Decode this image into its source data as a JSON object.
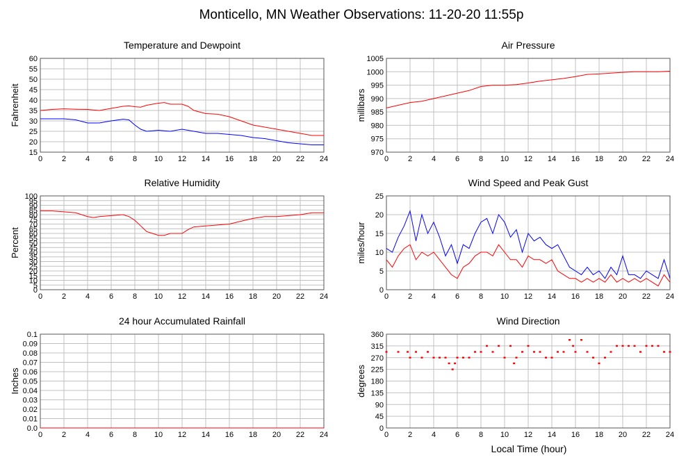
{
  "page": {
    "title": "Monticello, MN Weather Observations: 11-20-20 11:55p",
    "x_axis_label": "Local Time (hour)"
  },
  "colors": {
    "series_red": "#ff0000",
    "series_blue": "#0000ff",
    "grid": "#c0c0c0",
    "frame": "#555555"
  },
  "chart_data": [
    {
      "id": "temp",
      "type": "line",
      "title": "Temperature and Dewpoint",
      "ylabel": "Fahrenheit",
      "xlim": [
        0,
        24
      ],
      "ylim": [
        15,
        60
      ],
      "yticks": [
        15,
        20,
        25,
        30,
        35,
        40,
        45,
        50,
        55,
        60
      ],
      "xticks": [
        0,
        2,
        4,
        6,
        8,
        10,
        12,
        14,
        16,
        18,
        20,
        22,
        24
      ],
      "grid": true,
      "series": [
        {
          "color": "red",
          "x": [
            0,
            1,
            2,
            3,
            4,
            5,
            6,
            7,
            7.5,
            8,
            8.5,
            9,
            10,
            10.5,
            11,
            12,
            12.5,
            13,
            14,
            15,
            16,
            17,
            18,
            19,
            20,
            21,
            22,
            23,
            24
          ],
          "y": [
            35,
            35.5,
            35.8,
            35.6,
            35.5,
            35,
            36,
            37,
            37.2,
            36.8,
            36.6,
            37.5,
            38.5,
            38.8,
            38,
            38,
            37,
            35,
            33.5,
            33.2,
            32,
            30,
            28,
            27,
            26,
            25,
            24,
            23,
            23
          ]
        },
        {
          "color": "blue",
          "x": [
            0,
            1,
            2,
            3,
            4,
            5,
            6,
            7,
            7.5,
            8,
            8.5,
            9,
            10,
            11,
            12,
            13,
            14,
            15,
            16,
            17,
            18,
            19,
            20,
            21,
            22,
            23,
            24
          ],
          "y": [
            31,
            31,
            31,
            30.5,
            29,
            29,
            30,
            30.8,
            30.5,
            28,
            26,
            25,
            25.5,
            25,
            26,
            25,
            24,
            24,
            23.5,
            23,
            22,
            21.5,
            20.5,
            19.5,
            19,
            18.5,
            18.5
          ]
        }
      ]
    },
    {
      "id": "pressure",
      "type": "line",
      "title": "Air Pressure",
      "ylabel": "millibars",
      "xlim": [
        0,
        24
      ],
      "ylim": [
        970,
        1005
      ],
      "yticks": [
        970,
        975,
        980,
        985,
        990,
        995,
        1000,
        1005
      ],
      "xticks": [
        0,
        2,
        4,
        6,
        8,
        10,
        12,
        14,
        16,
        18,
        20,
        22,
        24
      ],
      "grid": true,
      "series": [
        {
          "color": "red",
          "x": [
            0,
            1,
            2,
            3,
            4,
            5,
            6,
            7,
            8,
            9,
            10,
            11,
            12,
            13,
            14,
            15,
            16,
            17,
            18,
            19,
            20,
            21,
            22,
            23,
            24
          ],
          "y": [
            986.5,
            987.5,
            988.5,
            989,
            990,
            991,
            992,
            993,
            994.5,
            995,
            995,
            995.2,
            995.8,
            996.5,
            997,
            997.5,
            998.2,
            999,
            999.2,
            999.5,
            999.8,
            1000,
            1000,
            1000,
            1000.2
          ]
        }
      ]
    },
    {
      "id": "humidity",
      "type": "line",
      "title": "Relative Humidity",
      "ylabel": "Percent",
      "xlim": [
        0,
        24
      ],
      "ylim": [
        0,
        100
      ],
      "yticks": [
        0,
        5,
        10,
        15,
        20,
        25,
        30,
        35,
        40,
        45,
        50,
        55,
        60,
        65,
        70,
        75,
        80,
        85,
        90,
        95,
        100
      ],
      "xticks": [
        0,
        2,
        4,
        6,
        8,
        10,
        12,
        14,
        16,
        18,
        20,
        22,
        24
      ],
      "grid": true,
      "series": [
        {
          "color": "red",
          "x": [
            0,
            1,
            2,
            3,
            4,
            4.5,
            5,
            6,
            7,
            7.5,
            8,
            8.5,
            9,
            9.5,
            10,
            10.5,
            11,
            12,
            12.5,
            13,
            14,
            15,
            16,
            17,
            18,
            19,
            20,
            21,
            22,
            23,
            24
          ],
          "y": [
            84,
            84,
            83,
            82,
            78,
            77,
            78,
            79,
            80,
            78,
            74,
            68,
            62,
            60,
            58,
            58,
            60,
            60,
            64,
            67,
            68,
            69,
            70,
            73,
            76,
            78,
            78,
            79,
            80,
            82,
            82
          ]
        }
      ]
    },
    {
      "id": "wind",
      "type": "line",
      "title": "Wind Speed and Peak Gust",
      "ylabel": "miles/hour",
      "xlim": [
        0,
        24
      ],
      "ylim": [
        0,
        25
      ],
      "yticks": [
        0,
        5,
        10,
        15,
        20,
        25
      ],
      "xticks": [
        0,
        2,
        4,
        6,
        8,
        10,
        12,
        14,
        16,
        18,
        20,
        22,
        24
      ],
      "grid": true,
      "series": [
        {
          "color": "blue",
          "x": [
            0,
            0.5,
            1,
            1.5,
            2,
            2.5,
            3,
            3.5,
            4,
            4.5,
            5,
            5.5,
            6,
            6.5,
            7,
            7.5,
            8,
            8.5,
            9,
            9.5,
            10,
            10.5,
            11,
            11.5,
            12,
            12.5,
            13,
            13.5,
            14,
            14.5,
            15,
            15.5,
            16,
            16.5,
            17,
            17.5,
            18,
            18.5,
            19,
            19.5,
            20,
            20.5,
            21,
            21.5,
            22,
            22.5,
            23,
            23.5,
            24
          ],
          "y": [
            11,
            10,
            14,
            17,
            21,
            13,
            20,
            15,
            18,
            14,
            9,
            12,
            7,
            12,
            11,
            15,
            18,
            19,
            15,
            20,
            18,
            14,
            16,
            10,
            15,
            13,
            14,
            12,
            11,
            12,
            9,
            6,
            5,
            4,
            6,
            4,
            5,
            3,
            6,
            4,
            9,
            4,
            4,
            3,
            5,
            4,
            3,
            8,
            3
          ]
        },
        {
          "color": "red",
          "x": [
            0,
            0.5,
            1,
            1.5,
            2,
            2.5,
            3,
            3.5,
            4,
            4.5,
            5,
            5.5,
            6,
            6.5,
            7,
            7.5,
            8,
            8.5,
            9,
            9.5,
            10,
            10.5,
            11,
            11.5,
            12,
            12.5,
            13,
            13.5,
            14,
            14.5,
            15,
            15.5,
            16,
            16.5,
            17,
            17.5,
            18,
            18.5,
            19,
            19.5,
            20,
            20.5,
            21,
            21.5,
            22,
            22.5,
            23,
            23.5,
            24
          ],
          "y": [
            8,
            6,
            9,
            11,
            12,
            8,
            10,
            9,
            10,
            8,
            6,
            4,
            3,
            6,
            7,
            9,
            10,
            10,
            9,
            12,
            10,
            8,
            8,
            6,
            9,
            8,
            8,
            7,
            8,
            5,
            4,
            3,
            3,
            2,
            3,
            2,
            3,
            2,
            4,
            2,
            3,
            2,
            3,
            2,
            3,
            2,
            1,
            4,
            2
          ]
        }
      ]
    },
    {
      "id": "rain",
      "type": "line",
      "title": "24 hour Accumulated Rainfall",
      "ylabel": "Inches",
      "xlim": [
        0,
        24
      ],
      "ylim": [
        0,
        0.1
      ],
      "yticks": [
        0,
        0.01,
        0.02,
        0.03,
        0.04,
        0.05,
        0.06,
        0.07,
        0.08,
        0.09,
        0.1
      ],
      "ytick_labels": [
        "0.0",
        "0.01",
        "0.02",
        "0.03",
        "0.04",
        "0.05",
        "0.06",
        "0.07",
        "0.08",
        "0.09",
        "0.1"
      ],
      "xticks": [
        0,
        2,
        4,
        6,
        8,
        10,
        12,
        14,
        16,
        18,
        20,
        22,
        24
      ],
      "grid": true,
      "series": [
        {
          "color": "red",
          "x": [
            0,
            24
          ],
          "y": [
            0,
            0
          ]
        }
      ]
    },
    {
      "id": "winddir",
      "type": "scatter",
      "title": "Wind Direction",
      "ylabel": "degrees",
      "xlim": [
        0,
        24
      ],
      "ylim": [
        0,
        360
      ],
      "yticks": [
        0,
        45,
        90,
        135,
        180,
        225,
        270,
        315,
        360
      ],
      "xticks": [
        0,
        2,
        4,
        6,
        8,
        10,
        12,
        14,
        16,
        18,
        20,
        22,
        24
      ],
      "grid": true,
      "series": [
        {
          "color": "red",
          "points": [
            [
              0,
              292
            ],
            [
              1,
              292
            ],
            [
              1.8,
              292
            ],
            [
              2,
              270
            ],
            [
              2.5,
              292
            ],
            [
              3,
              270
            ],
            [
              3.5,
              292
            ],
            [
              4,
              270
            ],
            [
              4.5,
              270
            ],
            [
              5,
              270
            ],
            [
              5.3,
              248
            ],
            [
              5.6,
              225
            ],
            [
              5.8,
              248
            ],
            [
              6,
              270
            ],
            [
              6.5,
              270
            ],
            [
              7,
              270
            ],
            [
              7.5,
              292
            ],
            [
              8,
              292
            ],
            [
              8.5,
              315
            ],
            [
              9,
              292
            ],
            [
              9.5,
              315
            ],
            [
              10,
              270
            ],
            [
              10.5,
              315
            ],
            [
              10.8,
              248
            ],
            [
              11,
              270
            ],
            [
              11.5,
              292
            ],
            [
              12,
              315
            ],
            [
              12.5,
              292
            ],
            [
              13,
              292
            ],
            [
              13.5,
              270
            ],
            [
              14,
              270
            ],
            [
              14.5,
              292
            ],
            [
              15,
              292
            ],
            [
              15.5,
              338
            ],
            [
              15.8,
              315
            ],
            [
              16,
              292
            ],
            [
              16.5,
              338
            ],
            [
              17,
              292
            ],
            [
              17.5,
              270
            ],
            [
              18,
              248
            ],
            [
              18.5,
              270
            ],
            [
              19,
              292
            ],
            [
              19.5,
              315
            ],
            [
              20,
              315
            ],
            [
              20.5,
              315
            ],
            [
              21,
              315
            ],
            [
              21.5,
              292
            ],
            [
              22,
              315
            ],
            [
              22.5,
              315
            ],
            [
              23,
              315
            ],
            [
              23.5,
              292
            ],
            [
              24,
              292
            ]
          ]
        }
      ]
    }
  ]
}
